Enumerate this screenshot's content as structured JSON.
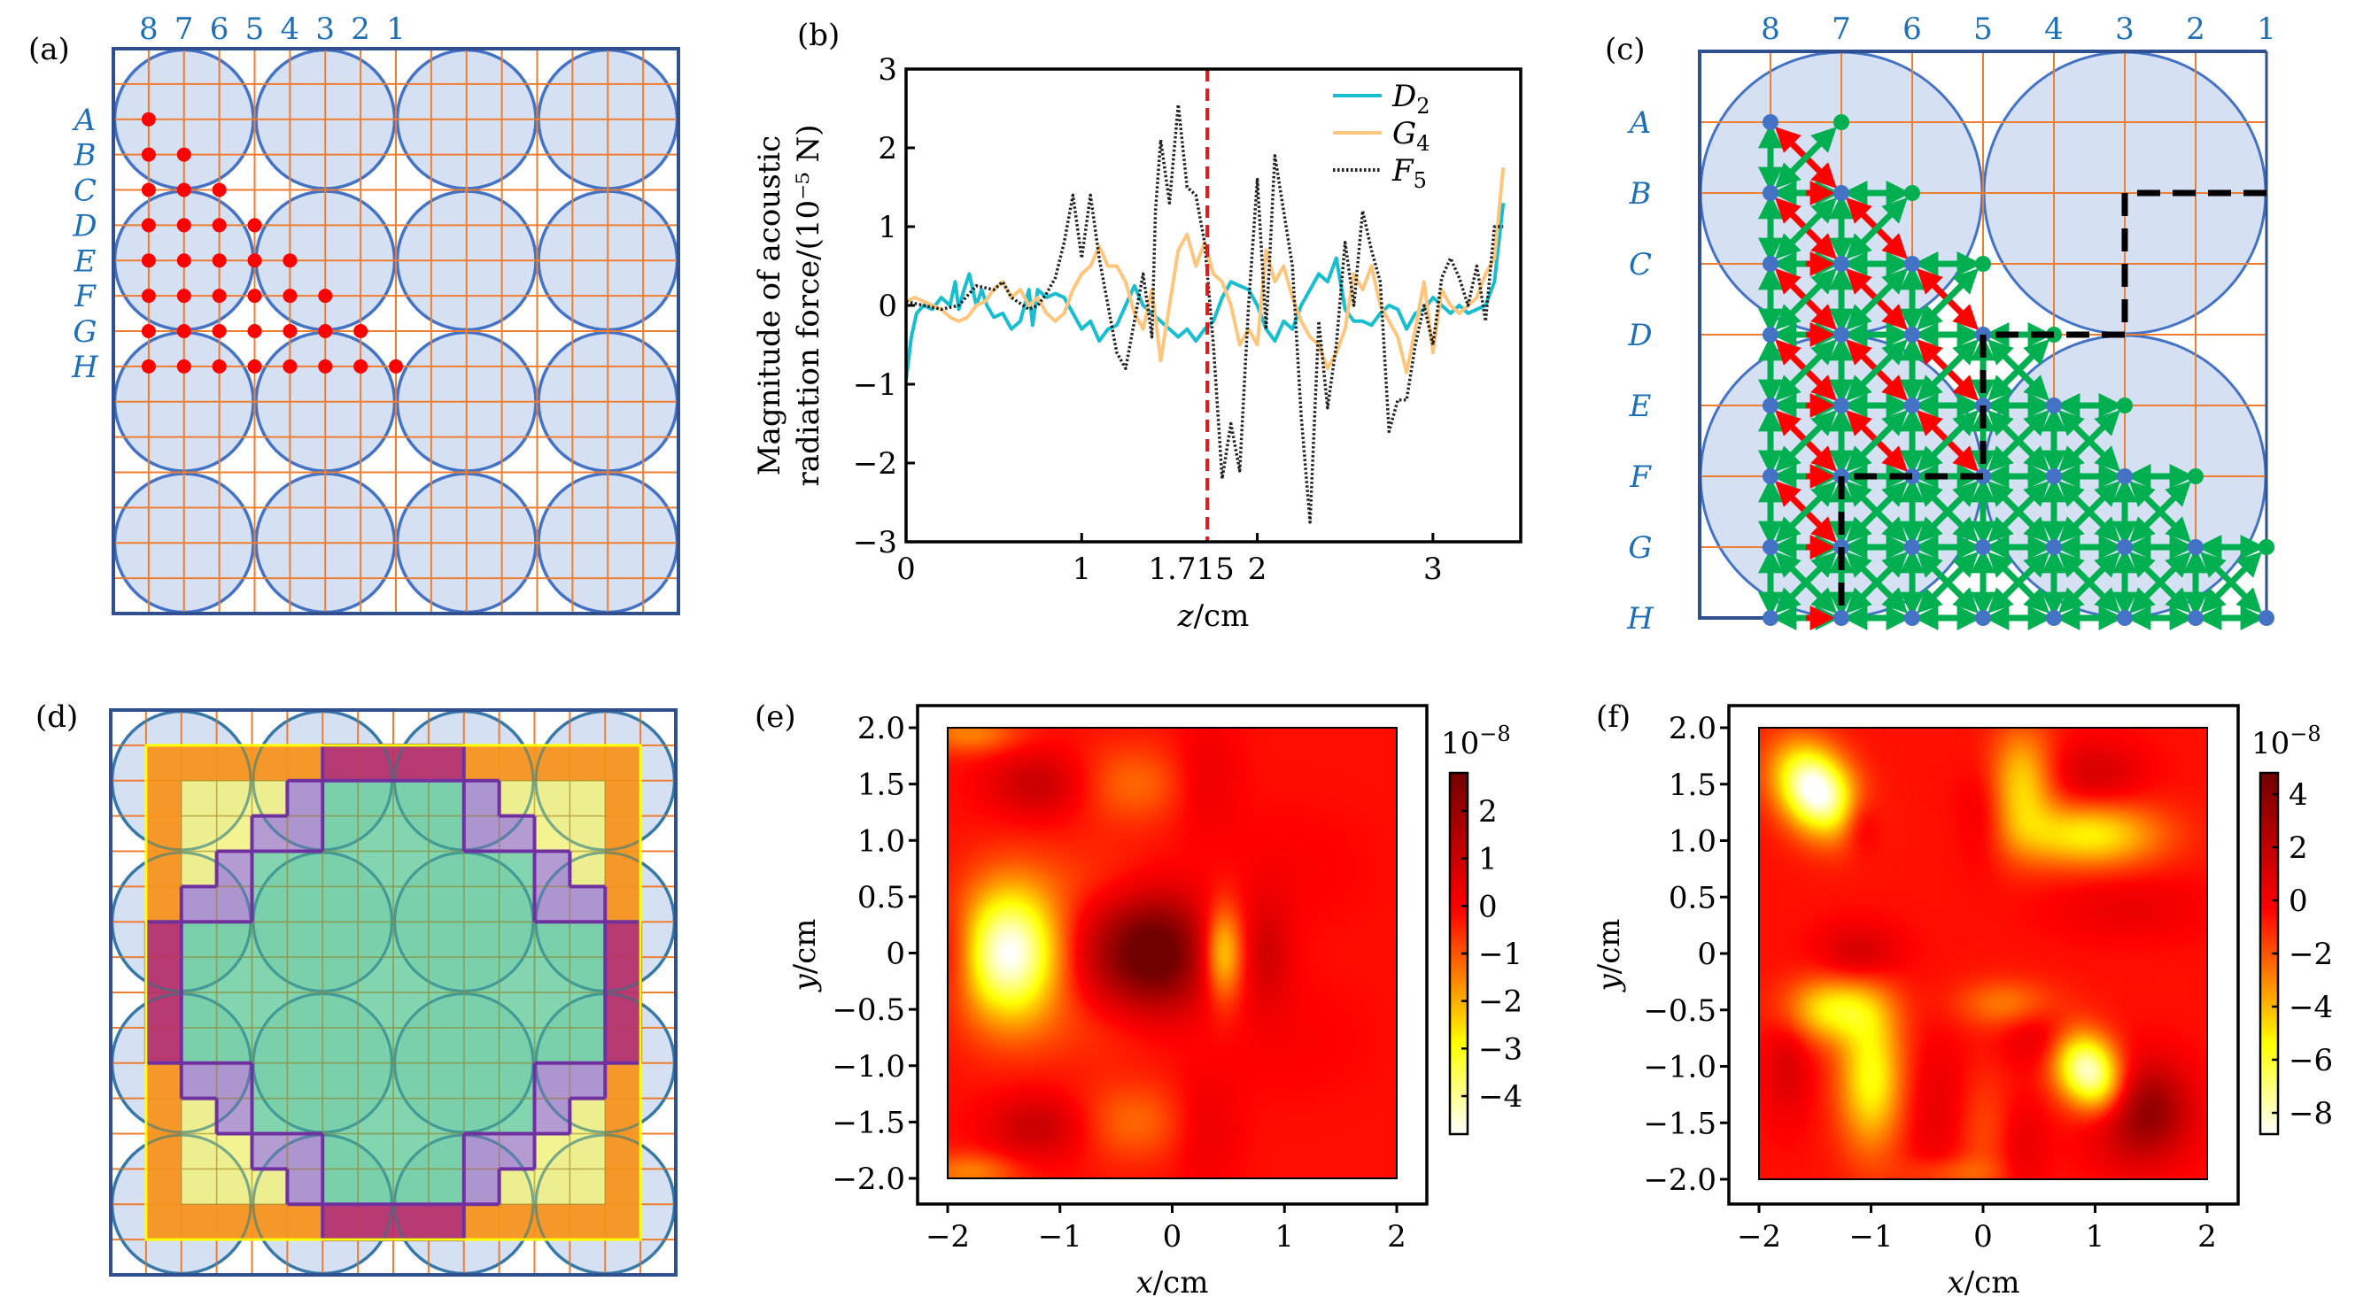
{
  "panels": {
    "a": {
      "tag": "(a)",
      "column_labels": [
        "8",
        "7",
        "6",
        "5",
        "4",
        "3",
        "2",
        "1"
      ],
      "row_labels": [
        "A",
        "B",
        "C",
        "D",
        "E",
        "F",
        "G",
        "H"
      ],
      "grid_divisions": 16,
      "circle_layout": [
        4,
        4
      ],
      "points_per_row": {
        "A": 1,
        "B": 2,
        "C": 3,
        "D": 4,
        "E": 5,
        "F": 6,
        "G": 7,
        "H": 8
      },
      "colors": {
        "frame": "#2f4f8f",
        "circle_fill": "#d6e0f3",
        "circle_stroke": "#4472c4",
        "grid": "#ed7d31",
        "point": "#ff0000",
        "label": "#1f6fb4"
      }
    },
    "b": {
      "tag": "(b)"
    },
    "c": {
      "tag": "(c)",
      "column_labels": [
        "8",
        "7",
        "6",
        "5",
        "4",
        "3",
        "2",
        "1"
      ],
      "row_labels": [
        "A",
        "B",
        "C",
        "D",
        "E",
        "F",
        "G",
        "H"
      ],
      "nodes_per_row": {
        "A": 2,
        "B": 3,
        "C": 4,
        "D": 5,
        "E": 6,
        "F": 7,
        "G": 8,
        "H": 8
      },
      "boundary_path_nodes": [
        [
          "B",
          "1"
        ],
        [
          "B",
          "3"
        ],
        [
          "D",
          "3"
        ],
        [
          "D",
          "5"
        ],
        [
          "F",
          "5"
        ],
        [
          "F",
          "7"
        ],
        [
          "H",
          "7"
        ]
      ],
      "colors": {
        "frame": "#2f4f8f",
        "circle_fill": "#d6e0f3",
        "circle_stroke": "#4472c4",
        "grid": "#ed7d31",
        "node_blue": "#4472c4",
        "node_green": "#00b050",
        "arrow_green": "#00b050",
        "arrow_red": "#ff0000",
        "path": "#000000",
        "label": "#1f6fb4"
      }
    },
    "d": {
      "tag": "(d)",
      "grid_divisions": 16,
      "quadrant_rows": [
        [
          "o",
          "o",
          "o",
          "o",
          "o",
          "m",
          "m"
        ],
        [
          "o",
          "y",
          "y",
          "y",
          "p",
          "g",
          "g"
        ],
        [
          "o",
          "y",
          "y",
          "p",
          "p",
          "g",
          "g"
        ],
        [
          "o",
          "y",
          "p",
          "g",
          "g",
          "g",
          "g"
        ],
        [
          "o",
          "p",
          "p",
          "g",
          "g",
          "g",
          "g"
        ],
        [
          "m",
          "g",
          "g",
          "g",
          "g",
          "g",
          "g"
        ],
        [
          "m",
          "g",
          "g",
          "g",
          "g",
          "g",
          "g"
        ]
      ],
      "region_colors": {
        "o": "#f7941d",
        "m": "#b5316a",
        "y": "#f0f07a",
        "p": "#a385c8",
        "g": "#66cc9c"
      },
      "colors": {
        "frame": "#2f4f8f",
        "circle_fill": "#d6e0f3",
        "circle_stroke": "#4472c4",
        "grid": "#ed7d31",
        "outline_yellow": "#ffff00",
        "outline_purple": "#7030a0"
      }
    },
    "e": {
      "tag": "(e)"
    },
    "f": {
      "tag": "(f)"
    }
  },
  "chart_data": [
    {
      "id": "b",
      "type": "line",
      "title": "",
      "xlabel": "z/cm",
      "ylabel_line1": "Magnitude of acoustic",
      "ylabel_line2": "radiation force/(10⁻⁵ N)",
      "xlim": [
        0,
        3.5
      ],
      "ylim": [
        -3,
        3
      ],
      "xticks": [
        0,
        1,
        1.715,
        2,
        3
      ],
      "xtick_labels": [
        "0",
        "1",
        "1.715",
        "2",
        "3"
      ],
      "yticks": [
        -3,
        -2,
        -1,
        0,
        1,
        2,
        3
      ],
      "ytick_labels": [
        "−3",
        "−2",
        "−1",
        "0",
        "1",
        "2",
        "3"
      ],
      "vline": {
        "x": 1.715,
        "color": "#e31a1c",
        "style": "dashed"
      },
      "legend_position": "top-right",
      "series": [
        {
          "name": "D2",
          "label_main": "D",
          "label_sub": "2",
          "color": "#17becf",
          "style": "solid",
          "x": [
            0,
            0.03,
            0.06,
            0.1,
            0.15,
            0.2,
            0.25,
            0.28,
            0.3,
            0.33,
            0.36,
            0.4,
            0.43,
            0.46,
            0.5,
            0.55,
            0.6,
            0.65,
            0.7,
            0.72,
            0.75,
            0.8,
            0.85,
            0.9,
            0.95,
            1.0,
            1.05,
            1.1,
            1.15,
            1.2,
            1.25,
            1.3,
            1.35,
            1.4,
            1.45,
            1.5,
            1.55,
            1.6,
            1.65,
            1.7,
            1.75,
            1.8,
            1.85,
            1.9,
            1.95,
            2.0,
            2.05,
            2.1,
            2.15,
            2.2,
            2.25,
            2.3,
            2.35,
            2.4,
            2.45,
            2.5,
            2.55,
            2.6,
            2.65,
            2.7,
            2.75,
            2.8,
            2.85,
            2.9,
            2.95,
            3.0,
            3.05,
            3.1,
            3.15,
            3.2,
            3.25,
            3.3,
            3.35,
            3.4
          ],
          "y": [
            -0.95,
            -0.4,
            -0.1,
            0.0,
            -0.05,
            0.1,
            0.0,
            0.3,
            -0.05,
            0.2,
            0.4,
            0.0,
            0.2,
            0.0,
            -0.15,
            -0.1,
            -0.3,
            -0.2,
            0.2,
            -0.25,
            0.2,
            0.1,
            0.15,
            0.1,
            -0.1,
            -0.3,
            -0.2,
            -0.45,
            -0.3,
            -0.25,
            0.0,
            0.25,
            0.0,
            -0.1,
            -0.2,
            -0.3,
            -0.4,
            -0.3,
            -0.45,
            -0.3,
            -0.2,
            0.1,
            0.3,
            0.25,
            0.2,
            0.0,
            -0.3,
            -0.45,
            -0.2,
            -0.3,
            0.0,
            0.2,
            0.4,
            0.3,
            0.6,
            -0.05,
            -0.2,
            -0.2,
            -0.25,
            -0.1,
            0.0,
            -0.05,
            -0.3,
            -0.1,
            -0.05,
            0.1,
            0.0,
            -0.1,
            0.0,
            -0.1,
            -0.05,
            0.0,
            0.3,
            1.3
          ]
        },
        {
          "name": "G4",
          "label_main": "G",
          "label_sub": "4",
          "color": "#fdc67c",
          "style": "solid",
          "x": [
            0,
            0.05,
            0.1,
            0.15,
            0.2,
            0.25,
            0.3,
            0.35,
            0.4,
            0.45,
            0.5,
            0.55,
            0.6,
            0.65,
            0.7,
            0.75,
            0.8,
            0.85,
            0.9,
            0.95,
            1.0,
            1.05,
            1.1,
            1.15,
            1.2,
            1.25,
            1.3,
            1.35,
            1.4,
            1.45,
            1.5,
            1.55,
            1.6,
            1.65,
            1.7,
            1.75,
            1.8,
            1.85,
            1.9,
            1.95,
            2.0,
            2.05,
            2.1,
            2.15,
            2.2,
            2.25,
            2.3,
            2.35,
            2.4,
            2.45,
            2.5,
            2.55,
            2.6,
            2.65,
            2.7,
            2.75,
            2.8,
            2.85,
            2.9,
            2.95,
            3.0,
            3.05,
            3.1,
            3.15,
            3.2,
            3.25,
            3.3,
            3.35,
            3.4
          ],
          "y": [
            0.05,
            0.1,
            0.05,
            0.0,
            -0.05,
            -0.15,
            -0.2,
            -0.15,
            0.0,
            0.05,
            0.2,
            0.3,
            0.1,
            0.2,
            0.0,
            0.1,
            -0.1,
            -0.2,
            -0.1,
            0.2,
            0.4,
            0.5,
            0.75,
            0.5,
            0.5,
            0.3,
            -0.1,
            -0.3,
            0.2,
            -0.7,
            0.0,
            0.7,
            0.9,
            0.5,
            0.8,
            0.4,
            0.3,
            0.0,
            -0.5,
            -0.3,
            -0.5,
            0.7,
            0.3,
            0.5,
            0.1,
            -0.2,
            -0.4,
            -0.5,
            -0.8,
            -0.6,
            -0.3,
            0.4,
            0.2,
            0.5,
            0.0,
            -0.2,
            -0.4,
            -0.85,
            -0.3,
            0.3,
            -0.6,
            0.2,
            0.0,
            -0.1,
            0.0,
            0.1,
            0.4,
            0.6,
            1.75
          ]
        },
        {
          "name": "F5",
          "label_main": "F",
          "label_sub": "5",
          "color": "#222222",
          "style": "dotted",
          "x": [
            0,
            0.1,
            0.2,
            0.3,
            0.4,
            0.5,
            0.55,
            0.6,
            0.7,
            0.75,
            0.8,
            0.85,
            0.9,
            0.95,
            1.0,
            1.05,
            1.1,
            1.15,
            1.2,
            1.25,
            1.3,
            1.35,
            1.4,
            1.42,
            1.45,
            1.5,
            1.55,
            1.6,
            1.65,
            1.7,
            1.75,
            1.8,
            1.85,
            1.9,
            1.95,
            2.0,
            2.05,
            2.1,
            2.15,
            2.2,
            2.25,
            2.3,
            2.35,
            2.4,
            2.45,
            2.5,
            2.55,
            2.6,
            2.65,
            2.7,
            2.75,
            2.8,
            2.85,
            2.9,
            2.95,
            3.0,
            3.05,
            3.1,
            3.15,
            3.2,
            3.25,
            3.3,
            3.35,
            3.4
          ],
          "y": [
            0.05,
            0.0,
            -0.05,
            0.0,
            0.25,
            0.2,
            0.3,
            0.1,
            -0.05,
            0.0,
            0.15,
            0.35,
            0.8,
            1.4,
            0.6,
            1.4,
            0.6,
            0.0,
            -0.6,
            -0.8,
            -0.2,
            0.4,
            -0.4,
            1.2,
            2.1,
            1.3,
            2.55,
            1.5,
            1.4,
            0.8,
            -0.5,
            -2.2,
            -1.5,
            -2.1,
            0.0,
            1.6,
            -0.3,
            1.9,
            1.2,
            0.5,
            -1.4,
            -2.75,
            -0.2,
            -1.3,
            -0.5,
            0.8,
            0.0,
            1.2,
            0.7,
            0.3,
            -1.6,
            -1.2,
            -1.2,
            -0.5,
            0.0,
            -0.5,
            0.35,
            0.6,
            0.35,
            0.0,
            0.5,
            -0.2,
            1.0,
            1.0
          ]
        }
      ]
    },
    {
      "id": "e",
      "type": "heatmap",
      "xlabel": "x/cm",
      "ylabel": "y/cm",
      "xlim": [
        -2,
        2
      ],
      "ylim": [
        -2,
        2
      ],
      "xticks": [
        -2,
        -1,
        0,
        1,
        2
      ],
      "xtick_labels": [
        "−2",
        "−1",
        "0",
        "1",
        "2"
      ],
      "yticks": [
        2.0,
        1.5,
        1.0,
        0.5,
        0,
        -0.5,
        -1.0,
        -1.5,
        -2.0
      ],
      "ytick_labels": [
        "2.0",
        "1.5",
        "1.0",
        "0.5",
        "0",
        "−0.5",
        "−1.0",
        "−1.5",
        "−2.0"
      ],
      "colorbar": {
        "exponent_label": "10",
        "exponent": "−8",
        "range": [
          -4.8,
          2.8
        ],
        "ticks": [
          2,
          1,
          0,
          -1,
          -2,
          -3,
          -4
        ],
        "tick_labels": [
          "2",
          "1",
          "0",
          "−1",
          "−2",
          "−3",
          "−4"
        ],
        "colormap": "hot"
      },
      "background_value": -0.2,
      "features": [
        {
          "x": -1.45,
          "y": 0.0,
          "sx": 0.32,
          "sy": 0.42,
          "value": -4.6
        },
        {
          "x": -0.1,
          "y": 0.0,
          "sx": 0.32,
          "sy": 0.4,
          "value": 3.0
        },
        {
          "x": -0.55,
          "y": 0.0,
          "sx": 0.3,
          "sy": 0.35,
          "value": 1.2
        },
        {
          "x": 0.45,
          "y": 0.0,
          "sx": 0.13,
          "sy": 0.3,
          "value": -2.6
        },
        {
          "x": 0.85,
          "y": 0.0,
          "sx": 0.15,
          "sy": 0.35,
          "value": 1.0
        },
        {
          "x": -1.95,
          "y": 0.0,
          "sx": 0.15,
          "sy": 0.3,
          "value": 0.9
        },
        {
          "x": -1.2,
          "y": 1.5,
          "sx": 0.3,
          "sy": 0.2,
          "value": 1.3
        },
        {
          "x": -0.35,
          "y": 1.5,
          "sx": 0.35,
          "sy": 0.25,
          "value": -1.0
        },
        {
          "x": 0.3,
          "y": 1.55,
          "sx": 0.2,
          "sy": 0.35,
          "value": 0.6
        },
        {
          "x": -1.2,
          "y": -1.55,
          "sx": 0.3,
          "sy": 0.2,
          "value": 1.3
        },
        {
          "x": -0.35,
          "y": -1.5,
          "sx": 0.35,
          "sy": 0.25,
          "value": -1.0
        },
        {
          "x": 0.3,
          "y": -1.55,
          "sx": 0.2,
          "sy": 0.35,
          "value": 0.6
        },
        {
          "x": -1.8,
          "y": 1.95,
          "sx": 0.3,
          "sy": 0.12,
          "value": -1.3
        },
        {
          "x": -1.8,
          "y": -1.95,
          "sx": 0.3,
          "sy": 0.12,
          "value": -1.3
        },
        {
          "x": -0.5,
          "y": 0.65,
          "sx": 0.6,
          "sy": 0.25,
          "value": -0.5
        },
        {
          "x": -0.5,
          "y": -0.65,
          "sx": 0.6,
          "sy": 0.25,
          "value": -0.5
        },
        {
          "x": 1.0,
          "y": 0.75,
          "sx": 0.5,
          "sy": 0.35,
          "value": 0.25
        },
        {
          "x": 1.0,
          "y": -0.75,
          "sx": 0.5,
          "sy": 0.35,
          "value": 0.25
        }
      ]
    },
    {
      "id": "f",
      "type": "heatmap",
      "xlabel": "x/cm",
      "ylabel": "y/cm",
      "xlim": [
        -2,
        2
      ],
      "ylim": [
        -2,
        2
      ],
      "xticks": [
        -2,
        -1,
        0,
        1,
        2
      ],
      "xtick_labels": [
        "−2",
        "−1",
        "0",
        "1",
        "2"
      ],
      "yticks": [
        2.0,
        1.5,
        1.0,
        0.5,
        0,
        -0.5,
        -1.0,
        -1.5,
        -2.0
      ],
      "ytick_labels": [
        "2.0",
        "1.5",
        "1.0",
        "0.5",
        "0",
        "−0.5",
        "−1.0",
        "−1.5",
        "−2.0"
      ],
      "colorbar": {
        "exponent_label": "10",
        "exponent": "−8",
        "range": [
          -8.8,
          4.8
        ],
        "ticks": [
          4,
          2,
          0,
          -2,
          -4,
          -6,
          -8
        ],
        "tick_labels": [
          "4",
          "2",
          "0",
          "−2",
          "−4",
          "−6",
          "−8"
        ],
        "colormap": "hot"
      },
      "background_value": -0.6,
      "features": [
        {
          "x": -1.5,
          "y": 1.45,
          "sx": 0.22,
          "sy": 0.3,
          "rot": -0.6,
          "value": -8.8
        },
        {
          "x": -1.1,
          "y": 1.15,
          "sx": 0.12,
          "sy": 0.18,
          "value": 1.6
        },
        {
          "x": 0.0,
          "y": 1.2,
          "sx": 0.15,
          "sy": 0.3,
          "value": 1.2
        },
        {
          "x": 0.35,
          "y": 1.5,
          "sx": 0.2,
          "sy": 0.35,
          "value": -4.0
        },
        {
          "x": 0.95,
          "y": 1.05,
          "sx": 0.45,
          "sy": 0.2,
          "value": -4.6
        },
        {
          "x": 1.0,
          "y": 1.6,
          "sx": 0.3,
          "sy": 0.2,
          "value": 1.8
        },
        {
          "x": 1.3,
          "y": 0.4,
          "sx": 0.5,
          "sy": 0.2,
          "value": 1.0
        },
        {
          "x": -1.1,
          "y": 0.0,
          "sx": 0.25,
          "sy": 0.18,
          "value": 2.0
        },
        {
          "x": -1.35,
          "y": -0.5,
          "sx": 0.3,
          "sy": 0.2,
          "value": -4.6
        },
        {
          "x": -1.0,
          "y": -1.1,
          "sx": 0.2,
          "sy": 0.45,
          "value": -5.0
        },
        {
          "x": -1.75,
          "y": -1.0,
          "sx": 0.15,
          "sy": 0.35,
          "value": 1.6
        },
        {
          "x": 0.2,
          "y": -0.45,
          "sx": 0.3,
          "sy": 0.15,
          "value": -2.2
        },
        {
          "x": 0.6,
          "y": -0.75,
          "sx": 0.25,
          "sy": 0.2,
          "value": 2.2
        },
        {
          "x": 0.95,
          "y": -1.05,
          "sx": 0.2,
          "sy": 0.3,
          "rot": -0.6,
          "value": -8.5
        },
        {
          "x": 1.4,
          "y": -1.4,
          "sx": 0.3,
          "sy": 0.3,
          "value": 5.0
        },
        {
          "x": -0.4,
          "y": -1.4,
          "sx": 0.2,
          "sy": 0.45,
          "value": 1.2
        },
        {
          "x": 0.0,
          "y": -1.6,
          "sx": 0.2,
          "sy": 0.4,
          "value": -1.2
        },
        {
          "x": 0.35,
          "y": -1.7,
          "sx": 0.15,
          "sy": 0.3,
          "value": 1.2
        },
        {
          "x": -0.3,
          "y": -1.95,
          "sx": 0.3,
          "sy": 0.1,
          "value": -1.5
        }
      ]
    }
  ]
}
